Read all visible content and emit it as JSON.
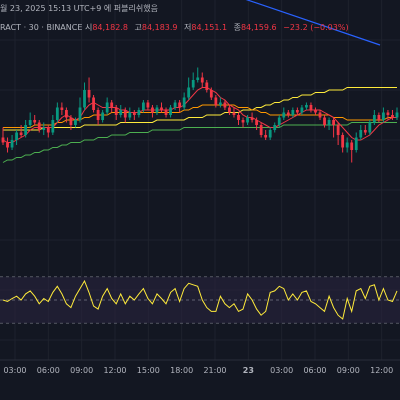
{
  "header": {
    "datetime_text": "월 23, 2025 15:13 UTC+9",
    "market_status": "에 퍼블리쉬했음",
    "symbol_text": "RACT · 30 · BINANCE",
    "open_label": "시",
    "open_value": "84,182.8",
    "high_label": "고",
    "high_value": "84,183.9",
    "low_label": "저",
    "low_value": "84,151.1",
    "close_label": "종",
    "close_value": "84,159.6",
    "change_text": "−23.2 (−0.03%)"
  },
  "chart_data": {
    "type": "candlestick",
    "x_ticks": [
      "03:00",
      "06:00",
      "09:00",
      "12:00",
      "15:00",
      "18:00",
      "21:00",
      "23",
      "03:00",
      "06:00",
      "09:00",
      "12:00"
    ],
    "x_tick_bold_index": 7,
    "colors": {
      "background": "#131722",
      "bull": "#089981",
      "bear": "#f23645",
      "ma_fast": "#f23645",
      "ma_mid": "#ff9800",
      "ma_slow": "#ffeb3b",
      "ma_long": "#4caf50",
      "trendline": "#2962ff",
      "rsi_line": "#ffeb3b",
      "rsi_band": "#2a2540",
      "grid": "#1e222d"
    },
    "candles": [
      [
        50,
        48,
        54,
        47
      ],
      [
        48,
        46,
        50,
        44
      ],
      [
        46,
        49,
        51,
        45
      ],
      [
        49,
        52,
        53,
        47
      ],
      [
        52,
        51,
        55,
        50
      ],
      [
        51,
        55,
        57,
        50
      ],
      [
        55,
        57,
        60,
        54
      ],
      [
        57,
        56,
        59,
        55
      ],
      [
        56,
        53,
        57,
        52
      ],
      [
        53,
        54,
        56,
        51
      ],
      [
        54,
        52,
        55,
        50
      ],
      [
        52,
        57,
        59,
        51
      ],
      [
        57,
        62,
        64,
        56
      ],
      [
        62,
        61,
        64,
        59
      ],
      [
        61,
        58,
        62,
        56
      ],
      [
        58,
        55,
        59,
        53
      ],
      [
        55,
        57,
        58,
        54
      ],
      [
        57,
        62,
        66,
        56
      ],
      [
        62,
        69,
        72,
        61
      ],
      [
        69,
        66,
        74,
        64
      ],
      [
        66,
        61,
        67,
        60
      ],
      [
        61,
        57,
        62,
        55
      ],
      [
        57,
        60,
        61,
        56
      ],
      [
        60,
        64,
        66,
        59
      ],
      [
        64,
        62,
        65,
        60
      ],
      [
        62,
        59,
        63,
        57
      ],
      [
        59,
        61,
        63,
        58
      ],
      [
        61,
        58,
        62,
        56
      ],
      [
        58,
        60,
        62,
        57
      ],
      [
        60,
        59,
        61,
        57
      ],
      [
        59,
        61,
        62,
        58
      ],
      [
        61,
        64,
        65,
        60
      ],
      [
        64,
        62,
        65,
        61
      ],
      [
        62,
        60,
        63,
        58
      ],
      [
        60,
        62,
        63,
        59
      ],
      [
        62,
        61,
        64,
        60
      ],
      [
        61,
        59,
        62,
        58
      ],
      [
        59,
        62,
        63,
        58
      ],
      [
        62,
        64,
        65,
        61
      ],
      [
        64,
        62,
        65,
        60
      ],
      [
        62,
        66,
        68,
        61
      ],
      [
        66,
        70,
        74,
        65
      ],
      [
        70,
        73,
        76,
        69
      ],
      [
        73,
        74,
        78,
        72
      ],
      [
        74,
        72,
        76,
        70
      ],
      [
        72,
        69,
        73,
        68
      ],
      [
        69,
        66,
        70,
        65
      ],
      [
        66,
        63,
        67,
        62
      ],
      [
        63,
        64,
        66,
        62
      ],
      [
        64,
        62,
        65,
        61
      ],
      [
        62,
        60,
        63,
        59
      ],
      [
        60,
        59,
        62,
        58
      ],
      [
        59,
        57,
        60,
        55
      ],
      [
        57,
        56,
        58,
        54
      ],
      [
        56,
        58,
        59,
        55
      ],
      [
        58,
        57,
        60,
        56
      ],
      [
        57,
        55,
        58,
        53
      ],
      [
        55,
        51,
        56,
        50
      ],
      [
        51,
        50,
        53,
        49
      ],
      [
        50,
        53,
        54,
        49
      ],
      [
        53,
        55,
        56,
        52
      ],
      [
        55,
        58,
        59,
        54
      ],
      [
        58,
        60,
        62,
        57
      ],
      [
        60,
        59,
        61,
        58
      ],
      [
        59,
        61,
        62,
        58
      ],
      [
        61,
        60,
        62,
        59
      ],
      [
        60,
        62,
        63,
        59
      ],
      [
        62,
        63,
        64,
        61
      ],
      [
        63,
        61,
        64,
        60
      ],
      [
        61,
        60,
        62,
        59
      ],
      [
        60,
        58,
        61,
        57
      ],
      [
        58,
        55,
        59,
        54
      ],
      [
        55,
        57,
        58,
        53
      ],
      [
        57,
        55,
        58,
        50
      ],
      [
        55,
        51,
        56,
        47
      ],
      [
        51,
        46,
        52,
        44
      ],
      [
        46,
        48,
        50,
        44
      ],
      [
        48,
        45,
        49,
        40
      ],
      [
        45,
        50,
        52,
        44
      ],
      [
        50,
        53,
        55,
        49
      ],
      [
        53,
        52,
        55,
        51
      ],
      [
        52,
        56,
        57,
        51
      ],
      [
        56,
        59,
        61,
        55
      ],
      [
        59,
        57,
        60,
        56
      ],
      [
        57,
        60,
        62,
        56
      ],
      [
        60,
        59,
        61,
        57
      ],
      [
        59,
        58,
        61,
        57
      ],
      [
        58,
        60,
        62,
        57
      ]
    ],
    "ma_fast": [
      49,
      48,
      48,
      49,
      50,
      51,
      53,
      54,
      54,
      54,
      54,
      54,
      56,
      58,
      59,
      58,
      57,
      58,
      61,
      63,
      64,
      63,
      62,
      62,
      62,
      62,
      61,
      61,
      60,
      60,
      60,
      61,
      61,
      61,
      61,
      61,
      61,
      61,
      62,
      62,
      63,
      65,
      67,
      69,
      70,
      70,
      69,
      68,
      66,
      65,
      63,
      62,
      61,
      59,
      58,
      58,
      57,
      56,
      55,
      54,
      54,
      55,
      56,
      57,
      58,
      59,
      60,
      61,
      61,
      61,
      61,
      60,
      59,
      58,
      56,
      54,
      52,
      50,
      49,
      49,
      50,
      51,
      53,
      55,
      56,
      57,
      58,
      58
    ],
    "ma_mid": [
      54,
      54,
      54,
      54,
      54,
      54,
      54,
      55,
      55,
      55,
      55,
      55,
      56,
      56,
      57,
      57,
      57,
      57,
      58,
      58,
      59,
      59,
      59,
      59,
      60,
      60,
      60,
      60,
      60,
      60,
      60,
      60,
      60,
      60,
      60,
      60,
      60,
      60,
      60,
      60,
      61,
      61,
      62,
      62,
      63,
      63,
      63,
      63,
      63,
      63,
      63,
      63,
      62,
      62,
      62,
      61,
      61,
      60,
      60,
      59,
      59,
      59,
      59,
      59,
      59,
      59,
      59,
      59,
      59,
      59,
      59,
      59,
      59,
      58,
      58,
      58,
      57,
      57,
      57,
      57,
      57,
      57,
      57,
      57,
      57,
      58,
      58,
      58
    ],
    "ma_slow": [
      53,
      53,
      53,
      53,
      53,
      53,
      53,
      53,
      53,
      54,
      54,
      54,
      54,
      54,
      54,
      54,
      54,
      54,
      55,
      55,
      55,
      55,
      55,
      55,
      55,
      55,
      56,
      56,
      56,
      56,
      56,
      56,
      56,
      56,
      57,
      57,
      57,
      57,
      57,
      57,
      57,
      58,
      58,
      58,
      58,
      59,
      59,
      59,
      59,
      60,
      60,
      60,
      60,
      61,
      61,
      61,
      62,
      62,
      63,
      63,
      64,
      64,
      65,
      65,
      66,
      66,
      67,
      67,
      67,
      68,
      68,
      68,
      69,
      69,
      69,
      69,
      70,
      70,
      70,
      70,
      70,
      70,
      70,
      70,
      70,
      70,
      70,
      70
    ],
    "ma_long": [
      40,
      41,
      41,
      42,
      42,
      43,
      43,
      44,
      44,
      45,
      45,
      46,
      46,
      47,
      47,
      48,
      48,
      48,
      49,
      49,
      49,
      50,
      50,
      50,
      51,
      51,
      51,
      51,
      52,
      52,
      52,
      52,
      52,
      53,
      53,
      53,
      53,
      53,
      53,
      53,
      54,
      54,
      54,
      54,
      54,
      54,
      54,
      54,
      54,
      54,
      54,
      54,
      54,
      54,
      54,
      54,
      54,
      54,
      54,
      54,
      54,
      54,
      55,
      55,
      55,
      55,
      55,
      55,
      55,
      55,
      55,
      55,
      55,
      55,
      55,
      55,
      55,
      56,
      56,
      56,
      56,
      56,
      56,
      56,
      56,
      56,
      56,
      56
    ],
    "trendline": [
      [
        38,
        118
      ],
      [
        95,
        87
      ]
    ],
    "rsi": [
      50,
      48,
      52,
      55,
      50,
      58,
      62,
      55,
      45,
      52,
      48,
      60,
      68,
      58,
      45,
      40,
      55,
      65,
      75,
      60,
      42,
      38,
      55,
      65,
      52,
      45,
      58,
      45,
      55,
      50,
      58,
      65,
      52,
      45,
      58,
      52,
      45,
      60,
      65,
      48,
      65,
      72,
      70,
      68,
      50,
      40,
      35,
      35,
      55,
      45,
      40,
      45,
      35,
      38,
      58,
      50,
      38,
      30,
      35,
      60,
      62,
      68,
      65,
      50,
      58,
      50,
      60,
      62,
      48,
      45,
      40,
      35,
      55,
      40,
      30,
      25,
      52,
      35,
      62,
      65,
      52,
      68,
      70,
      50,
      65,
      50,
      48,
      62
    ],
    "rsi_band": [
      30,
      70
    ]
  }
}
